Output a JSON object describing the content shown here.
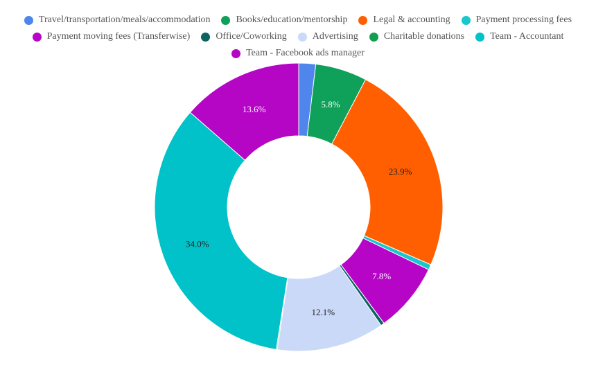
{
  "chart_data": {
    "type": "pie",
    "subtype": "donut",
    "title": "",
    "legend_position": "top",
    "categories": [
      "Travel/transportation/meals/accommodation",
      "Books/education/mentorship",
      "Legal & accounting",
      "Payment processing fees",
      "Payment moving fees (Transferwise)",
      "Office/Coworking",
      "Advertising",
      "Charitable donations",
      "Team - Accountant",
      "Team - Facebook ads manager"
    ],
    "values": [
      1.9,
      5.8,
      23.9,
      0.6,
      7.8,
      0.4,
      12.1,
      0.1,
      34.0,
      13.6
    ],
    "labels": [
      "",
      "5.8%",
      "23.9%",
      "",
      "7.8%",
      "",
      "12.1%",
      "",
      "34.0%",
      "13.6%"
    ],
    "label_colors": [
      "#ffffff",
      "#ffffff",
      "#222222",
      "#ffffff",
      "#ffffff",
      "#ffffff",
      "#222222",
      "#ffffff",
      "#222222",
      "#ffffff"
    ],
    "colors": [
      "#4e86ec",
      "#0fa05a",
      "#ff5f00",
      "#19c7cc",
      "#b705c8",
      "#0c6461",
      "#cad9f7",
      "#119e53",
      "#00c2c8",
      "#b505c5"
    ]
  }
}
